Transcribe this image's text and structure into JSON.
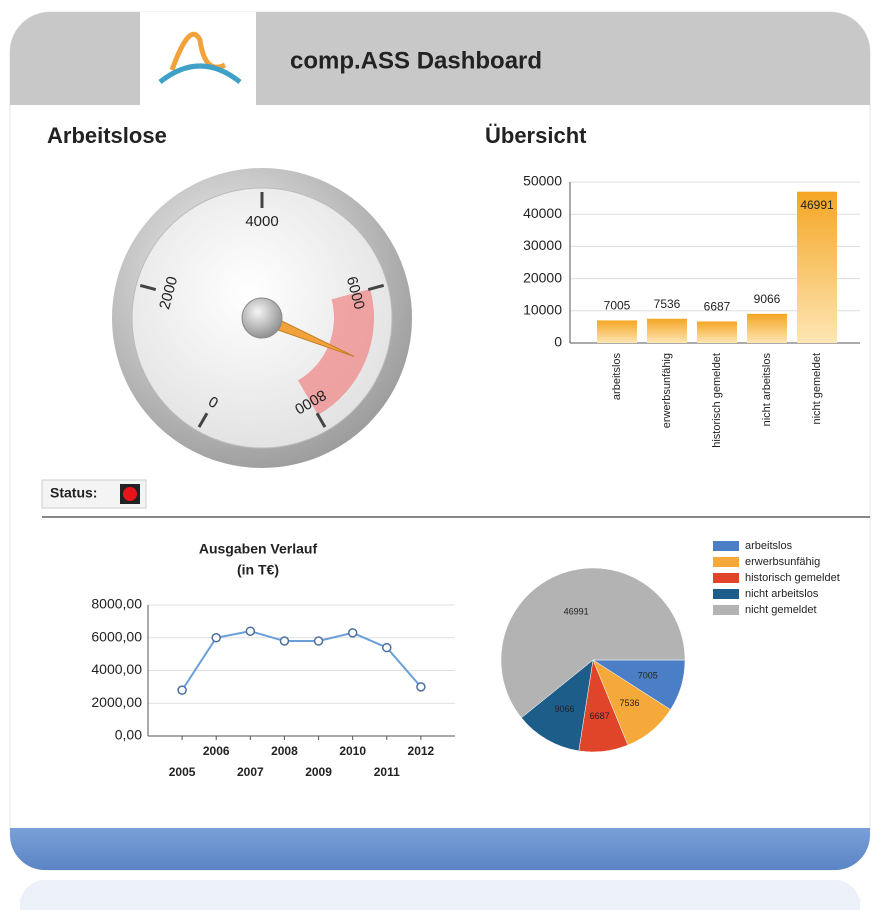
{
  "header": {
    "title": "comp.ASS Dashboard"
  },
  "status": {
    "label": "Status:"
  },
  "chart_data": [
    {
      "type": "gauge",
      "title": "Arbeitslose",
      "value": 7005,
      "ylim": [
        0,
        8000
      ],
      "yticks": [
        0,
        2000,
        4000,
        6000,
        8000
      ],
      "band": [
        6000,
        8000
      ],
      "color": "#f2a23a"
    },
    {
      "type": "bar",
      "title": "Übersicht",
      "categories": [
        "arbeitslos",
        "erwerbsunfähig",
        "historisch gemeldet",
        "nicht arbeitslos",
        "nicht gemeldet"
      ],
      "values": [
        7005,
        7536,
        6687,
        9066,
        46991
      ],
      "color": "#f5a623",
      "ylim": [
        0,
        50000
      ],
      "yticks": [
        0,
        10000,
        20000,
        30000,
        40000,
        50000
      ],
      "grid": true
    },
    {
      "type": "line",
      "title": "Ausgaben Verlauf",
      "subtitle": "(in T€)",
      "x": [
        2005,
        2006,
        2007,
        2008,
        2009,
        2010,
        2011,
        2012
      ],
      "values": [
        2800,
        6000,
        6400,
        5800,
        5800,
        6300,
        5400,
        3000
      ],
      "color": "#6a9fd8",
      "xlim": [
        2004,
        2013
      ],
      "xticks": [
        2005,
        2006,
        2007,
        2008,
        2009,
        2010,
        2011,
        2012
      ],
      "ylim": [
        0,
        8000
      ],
      "yticks": [
        {
          "value": 0,
          "label": "0,00"
        },
        {
          "value": 2000,
          "label": "2000,00"
        },
        {
          "value": 4000,
          "label": "4000,00"
        },
        {
          "value": 6000,
          "label": "6000,00"
        },
        {
          "value": 8000,
          "label": "8000,00"
        }
      ],
      "grid": true
    },
    {
      "type": "pie",
      "categories": [
        "arbeitslos",
        "erwerbsunfähig",
        "historisch gemeldet",
        "nicht arbeitslos",
        "nicht gemeldet"
      ],
      "values": [
        7005,
        7536,
        6687,
        9066,
        46991
      ],
      "colors": [
        "#4a7fc8",
        "#f5a93a",
        "#e0452a",
        "#1d5d8a",
        "#b3b3b3"
      ]
    }
  ]
}
